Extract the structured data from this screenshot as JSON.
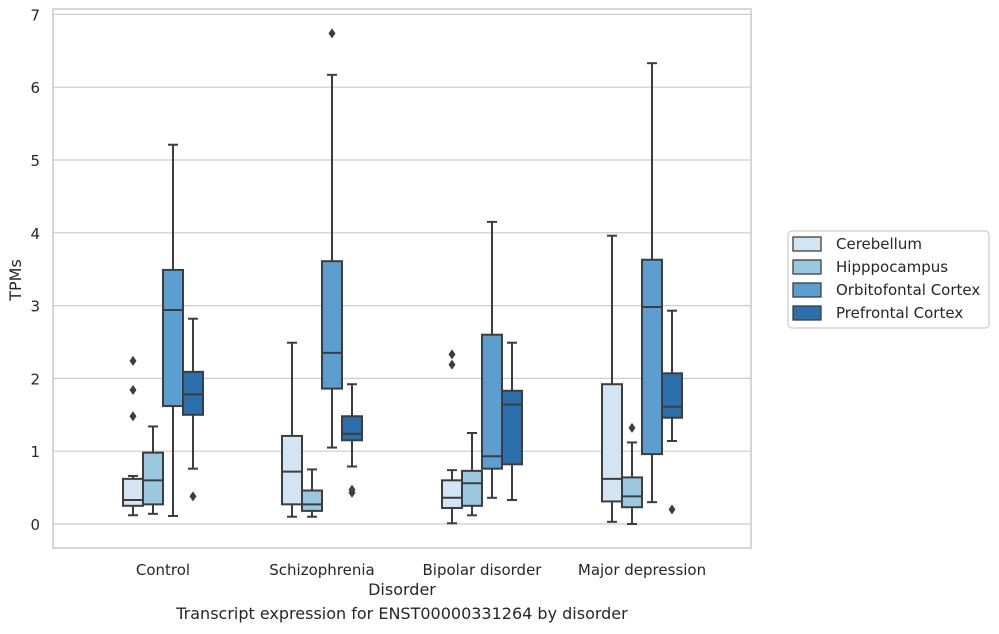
{
  "chart_data": {
    "type": "box",
    "xlabel": "Disorder",
    "ylabel": "TPMs",
    "caption": "Transcript expression for ENST00000331264 by disorder",
    "ylim": [
      -0.3,
      7.08
    ],
    "yticks": [
      0,
      1,
      2,
      3,
      4,
      5,
      6,
      7
    ],
    "grid": true,
    "legend_position": "right",
    "categories": [
      "Control",
      "Schizophrenia",
      "Bipolar disorder",
      "Major depression"
    ],
    "series": [
      {
        "name": "Cerebellum",
        "color": "#d3e4f3",
        "boxes": [
          {
            "whisker_low": 0.12,
            "q1": 0.25,
            "median": 0.33,
            "q3": 0.62,
            "whisker_high": 0.66,
            "outliers": [
              1.48,
              1.84,
              2.24
            ]
          },
          {
            "whisker_low": 0.1,
            "q1": 0.27,
            "median": 0.72,
            "q3": 1.21,
            "whisker_high": 2.49,
            "outliers": []
          },
          {
            "whisker_low": 0.01,
            "q1": 0.22,
            "median": 0.36,
            "q3": 0.6,
            "whisker_high": 0.74,
            "outliers": [
              2.19,
              2.33
            ]
          },
          {
            "whisker_low": 0.03,
            "q1": 0.31,
            "median": 0.62,
            "q3": 1.92,
            "whisker_high": 3.96,
            "outliers": []
          }
        ]
      },
      {
        "name": "Hipppocampus",
        "color": "#9ac8e0",
        "boxes": [
          {
            "whisker_low": 0.14,
            "q1": 0.27,
            "median": 0.6,
            "q3": 0.98,
            "whisker_high": 1.34,
            "outliers": []
          },
          {
            "whisker_low": 0.1,
            "q1": 0.18,
            "median": 0.27,
            "q3": 0.46,
            "whisker_high": 0.75,
            "outliers": []
          },
          {
            "whisker_low": 0.12,
            "q1": 0.25,
            "median": 0.56,
            "q3": 0.73,
            "whisker_high": 1.25,
            "outliers": []
          },
          {
            "whisker_low": 0.0,
            "q1": 0.23,
            "median": 0.38,
            "q3": 0.64,
            "whisker_high": 1.12,
            "outliers": [
              1.32
            ]
          }
        ]
      },
      {
        "name": "Orbitofontal Cortex",
        "color": "#5a9fd0",
        "boxes": [
          {
            "whisker_low": 0.11,
            "q1": 1.62,
            "median": 2.94,
            "q3": 3.49,
            "whisker_high": 5.21,
            "outliers": []
          },
          {
            "whisker_low": 1.05,
            "q1": 1.86,
            "median": 2.35,
            "q3": 3.61,
            "whisker_high": 6.17,
            "outliers": [
              6.74
            ]
          },
          {
            "whisker_low": 0.36,
            "q1": 0.76,
            "median": 0.93,
            "q3": 2.6,
            "whisker_high": 4.15,
            "outliers": []
          },
          {
            "whisker_low": 0.3,
            "q1": 0.96,
            "median": 2.98,
            "q3": 3.63,
            "whisker_high": 6.33,
            "outliers": []
          }
        ]
      },
      {
        "name": "Prefrontal Cortex",
        "color": "#2b6fac",
        "boxes": [
          {
            "whisker_low": 0.76,
            "q1": 1.5,
            "median": 1.78,
            "q3": 2.09,
            "whisker_high": 2.82,
            "outliers": [
              0.38
            ]
          },
          {
            "whisker_low": 0.79,
            "q1": 1.15,
            "median": 1.24,
            "q3": 1.48,
            "whisker_high": 1.92,
            "outliers": [
              0.43,
              0.47
            ]
          },
          {
            "whisker_low": 0.33,
            "q1": 0.82,
            "median": 1.64,
            "q3": 1.83,
            "whisker_high": 2.49,
            "outliers": []
          },
          {
            "whisker_low": 1.14,
            "q1": 1.46,
            "median": 1.61,
            "q3": 2.07,
            "whisker_high": 2.93,
            "outliers": [
              0.2
            ]
          }
        ]
      }
    ]
  },
  "style": {
    "grid_color": "#cccccc",
    "frame_color": "#cccccc",
    "line_color": "#3d3d3d",
    "text_color": "#262626"
  }
}
